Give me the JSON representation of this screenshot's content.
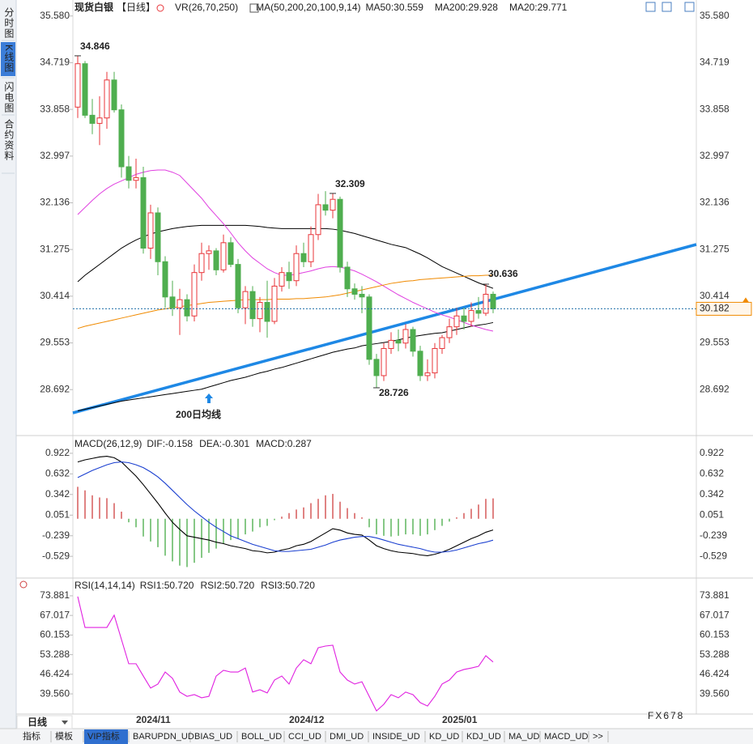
{
  "sidebar": [
    "分时图",
    "K线图",
    "闪电图",
    "合约资料"
  ],
  "toolbar": [
    "指标",
    "模板",
    "VIP指标",
    "BARUPDN_UD",
    "BIAS_UD",
    "BOLL_UD",
    "CCI_UD",
    "DMI_UD",
    "INSIDE_UD",
    "KD_UD",
    "KDJ_UD",
    "MA_UD",
    "MACD_UD",
    ">>"
  ],
  "period_button": "日线",
  "watermark": "FX678",
  "chart_data": [
    {
      "type": "candlestick",
      "title": "现货白银",
      "period": "【日线】",
      "indicator": "VR(26,70,250)",
      "ma_header": "MA(50,200,20,100,9,14)",
      "annotation": "200日均线",
      "categories": [
        null,
        null,
        null,
        null,
        null,
        null,
        null,
        null,
        "2024/11",
        null,
        null,
        null,
        null,
        null,
        null,
        null,
        null,
        null,
        null,
        null,
        null,
        null,
        null,
        null,
        null,
        null,
        null,
        null,
        null,
        "2024/12",
        null,
        null,
        null,
        null,
        null,
        null,
        null,
        null,
        null,
        null,
        null,
        null,
        null,
        null,
        null,
        null,
        null,
        null,
        null,
        null,
        "2025/01",
        null,
        null,
        null,
        null,
        null,
        null,
        null
      ],
      "open": [
        33.9,
        34.7,
        33.75,
        33.6,
        33.7,
        34.4,
        33.85,
        32.8,
        32.55,
        32.6,
        31.3,
        31.95,
        31.05,
        30.4,
        30.2,
        30.35,
        30.05,
        30.85,
        31.2,
        31.25,
        30.9,
        31.4,
        31.0,
        30.2,
        30.5,
        30.0,
        30.3,
        29.95,
        30.6,
        30.85,
        30.7,
        31.2,
        31.05,
        31.55,
        32.1,
        32.0,
        32.2,
        30.95,
        30.55,
        30.45,
        30.4,
        29.25,
        28.95,
        29.45,
        29.6,
        29.55,
        29.8,
        29.4,
        28.95,
        29.0,
        29.45,
        29.65,
        29.85,
        30.05,
        29.95,
        30.15,
        30.1,
        30.45
      ],
      "high": [
        34.846,
        34.75,
        34.05,
        34.1,
        34.55,
        34.55,
        33.95,
        33.0,
        32.95,
        32.8,
        32.1,
        32.05,
        31.15,
        30.7,
        30.55,
        30.45,
        31.0,
        31.4,
        31.35,
        31.3,
        31.55,
        31.5,
        31.1,
        30.6,
        30.6,
        30.4,
        30.7,
        30.75,
        30.95,
        31.05,
        31.35,
        31.4,
        31.7,
        32.3,
        32.35,
        32.309,
        32.25,
        31.05,
        30.65,
        30.6,
        30.45,
        29.35,
        29.55,
        29.75,
        29.8,
        29.9,
        29.85,
        29.5,
        29.25,
        29.55,
        29.7,
        30.0,
        30.2,
        30.2,
        30.3,
        30.4,
        30.636,
        30.5
      ],
      "low": [
        33.7,
        33.7,
        33.4,
        33.2,
        33.5,
        33.8,
        32.6,
        32.4,
        32.4,
        31.2,
        31.1,
        30.8,
        30.2,
        30.05,
        29.7,
        29.95,
        29.95,
        30.7,
        30.9,
        30.8,
        30.85,
        30.95,
        30.1,
        29.9,
        29.85,
        29.75,
        29.65,
        29.9,
        30.5,
        30.55,
        30.6,
        30.95,
        30.95,
        31.45,
        31.9,
        31.85,
        30.85,
        30.4,
        30.35,
        30.1,
        29.15,
        28.726,
        28.85,
        29.35,
        29.4,
        29.45,
        29.3,
        28.85,
        28.85,
        28.9,
        29.35,
        29.55,
        29.7,
        29.8,
        29.85,
        30.0,
        30.05,
        30.1
      ],
      "close": [
        34.7,
        33.75,
        33.6,
        33.7,
        34.4,
        33.85,
        32.8,
        32.55,
        32.6,
        31.3,
        31.95,
        31.05,
        30.4,
        30.2,
        30.35,
        30.05,
        30.85,
        31.2,
        31.25,
        30.9,
        31.4,
        31.0,
        30.2,
        30.5,
        30.0,
        30.3,
        29.95,
        30.6,
        30.85,
        30.7,
        31.2,
        31.05,
        31.55,
        32.1,
        32.0,
        32.2,
        30.95,
        30.55,
        30.45,
        30.4,
        29.25,
        28.95,
        29.45,
        29.6,
        29.55,
        29.8,
        29.4,
        28.95,
        29.0,
        29.45,
        29.65,
        29.85,
        30.05,
        29.95,
        30.15,
        30.1,
        30.45,
        30.182
      ],
      "up_color": "#e8363a",
      "down_color": "#4fae4f",
      "price_line_color": "#1f6fa8",
      "price_tag_color": "#f08a00",
      "series": [
        {
          "name": "MA50",
          "label": "MA50:30.559",
          "color": "#000000",
          "label_color": "#000000",
          "values": [
            30.68,
            30.8,
            30.9,
            31.0,
            31.1,
            31.2,
            31.3,
            31.38,
            31.45,
            31.51,
            31.56,
            31.6,
            31.63,
            31.66,
            31.68,
            31.7,
            31.71,
            31.72,
            31.72,
            31.72,
            31.72,
            31.72,
            31.72,
            31.72,
            31.71,
            31.7,
            31.68,
            31.67,
            31.66,
            31.66,
            31.66,
            31.66,
            31.66,
            31.66,
            31.66,
            31.65,
            31.63,
            31.6,
            31.57,
            31.53,
            31.49,
            31.45,
            31.41,
            31.37,
            31.34,
            31.31,
            31.25,
            31.19,
            31.12,
            31.04,
            30.96,
            30.9,
            30.84,
            30.78,
            30.72,
            30.66,
            30.61,
            30.559
          ]
        },
        {
          "name": "MA200",
          "label": "MA200:29.928",
          "color": "#000000",
          "label_color": "#1a56db",
          "values": [
            28.3,
            28.33,
            28.36,
            28.39,
            28.42,
            28.45,
            28.48,
            28.5,
            28.52,
            28.54,
            28.56,
            28.58,
            28.6,
            28.62,
            28.64,
            28.66,
            28.68,
            28.7,
            28.74,
            28.78,
            28.82,
            28.86,
            28.89,
            28.92,
            28.96,
            29.0,
            29.03,
            29.07,
            29.1,
            29.14,
            29.18,
            29.22,
            29.26,
            29.3,
            29.34,
            29.38,
            29.41,
            29.44,
            29.46,
            29.5,
            29.52,
            29.54,
            29.56,
            29.58,
            29.61,
            29.64,
            29.67,
            29.69,
            29.71,
            29.73,
            29.74,
            29.77,
            29.8,
            29.83,
            29.86,
            29.88,
            29.9,
            29.928
          ]
        },
        {
          "name": "MA20",
          "label": "MA20:29.771",
          "color": "#e040e0",
          "label_color": "#e020e0",
          "values": [
            31.92,
            32.05,
            32.18,
            32.3,
            32.4,
            32.48,
            32.54,
            32.6,
            32.66,
            32.7,
            32.73,
            32.74,
            32.74,
            32.7,
            32.64,
            32.5,
            32.36,
            32.22,
            32.05,
            31.9,
            31.75,
            31.58,
            31.4,
            31.25,
            31.12,
            31.02,
            30.92,
            30.85,
            30.8,
            30.8,
            30.82,
            30.85,
            30.88,
            30.92,
            30.95,
            30.96,
            30.95,
            30.92,
            30.88,
            30.82,
            30.75,
            30.68,
            30.6,
            30.52,
            30.44,
            30.37,
            30.3,
            30.24,
            30.18,
            30.12,
            30.07,
            30.03,
            29.98,
            29.93,
            29.88,
            29.84,
            29.8,
            29.771
          ]
        },
        {
          "color": "#f08a00",
          "values": [
            29.82,
            29.86,
            29.89,
            29.92,
            29.95,
            29.98,
            30.01,
            30.04,
            30.07,
            30.1,
            30.13,
            30.16,
            30.18,
            30.2,
            30.22,
            30.24,
            30.26,
            30.28,
            30.3,
            30.31,
            30.32,
            30.33,
            30.34,
            30.35,
            30.35,
            30.35,
            30.35,
            30.36,
            30.36,
            30.36,
            30.37,
            30.37,
            30.38,
            30.39,
            30.4,
            30.42,
            30.44,
            30.47,
            30.5,
            30.53,
            30.56,
            30.59,
            30.62,
            30.65,
            30.67,
            30.69,
            30.7,
            30.72,
            30.73,
            30.74,
            30.75,
            30.76,
            30.77,
            30.78,
            30.79,
            30.79,
            30.8,
            30.8
          ]
        }
      ],
      "ylim": [
        27.86,
        35.8
      ],
      "yticks": [
        {
          "value": 35.58,
          "label": "35.580"
        },
        34.719,
        33.858,
        32.997,
        32.136,
        31.275,
        30.414,
        29.553,
        28.692
      ]
    },
    {
      "type": "macd",
      "title": "MACD(26,12,9)",
      "series": [
        {
          "label": "DIF:-0.158",
          "color": "#000000",
          "label_color": "#000000",
          "values": [
            0.8,
            0.83,
            0.85,
            0.87,
            0.88,
            0.86,
            0.8,
            0.7,
            0.6,
            0.48,
            0.35,
            0.22,
            0.08,
            -0.05,
            -0.15,
            -0.24,
            -0.26,
            -0.28,
            -0.3,
            -0.33,
            -0.35,
            -0.38,
            -0.4,
            -0.42,
            -0.45,
            -0.46,
            -0.48,
            -0.47,
            -0.44,
            -0.42,
            -0.38,
            -0.36,
            -0.32,
            -0.26,
            -0.2,
            -0.14,
            -0.16,
            -0.2,
            -0.22,
            -0.23,
            -0.3,
            -0.38,
            -0.42,
            -0.45,
            -0.47,
            -0.48,
            -0.49,
            -0.51,
            -0.52,
            -0.5,
            -0.47,
            -0.43,
            -0.38,
            -0.33,
            -0.28,
            -0.24,
            -0.19,
            -0.158
          ]
        },
        {
          "label": "DEA:-0.301",
          "color": "#1a3fd0",
          "label_color": "#1a56db",
          "values": [
            0.58,
            0.63,
            0.68,
            0.72,
            0.76,
            0.79,
            0.8,
            0.79,
            0.76,
            0.72,
            0.66,
            0.59,
            0.5,
            0.4,
            0.3,
            0.2,
            0.11,
            0.03,
            -0.05,
            -0.12,
            -0.18,
            -0.24,
            -0.28,
            -0.32,
            -0.36,
            -0.39,
            -0.42,
            -0.45,
            -0.46,
            -0.46,
            -0.45,
            -0.44,
            -0.43,
            -0.4,
            -0.37,
            -0.33,
            -0.3,
            -0.28,
            -0.26,
            -0.25,
            -0.25,
            -0.27,
            -0.3,
            -0.33,
            -0.36,
            -0.38,
            -0.4,
            -0.42,
            -0.45,
            -0.47,
            -0.47,
            -0.46,
            -0.44,
            -0.41,
            -0.38,
            -0.35,
            -0.33,
            -0.301
          ]
        }
      ],
      "histogram": {
        "label": "MACD:0.287",
        "label_color": "#e020e0",
        "up_color": "#d04040",
        "down_color": "#44aa44",
        "values": [
          0.45,
          0.4,
          0.33,
          0.3,
          0.29,
          0.22,
          0.1,
          -0.05,
          -0.12,
          -0.25,
          -0.32,
          -0.4,
          -0.52,
          -0.6,
          -0.66,
          -0.68,
          -0.62,
          -0.55,
          -0.48,
          -0.42,
          -0.35,
          -0.3,
          -0.28,
          -0.22,
          -0.18,
          -0.12,
          -0.1,
          -0.02,
          0.03,
          0.08,
          0.13,
          0.16,
          0.22,
          0.28,
          0.33,
          0.35,
          0.24,
          0.15,
          0.08,
          0.02,
          -0.12,
          -0.22,
          -0.24,
          -0.25,
          -0.24,
          -0.22,
          -0.22,
          -0.24,
          -0.22,
          -0.16,
          -0.1,
          -0.04,
          0.02,
          0.08,
          0.14,
          0.2,
          0.28,
          0.287
        ]
      },
      "ylim": [
        -0.812,
        1.149
      ],
      "yticks": [
        0.922,
        0.632,
        0.342,
        0.051,
        -0.239,
        -0.529
      ]
    },
    {
      "type": "rsi",
      "title": "RSI(14,14,14)",
      "series": [
        {
          "label": "RSI1:50.720",
          "color": "#e020e0",
          "label_color": "#000000",
          "values": [
            73.6,
            62.8,
            62.8,
            62.8,
            62.8,
            67.1,
            58.6,
            50.1,
            50.1,
            45.8,
            41.6,
            43.0,
            47.2,
            45.0,
            40.2,
            38.7,
            39.3,
            38.2,
            38.7,
            45.8,
            47.8,
            47.2,
            47.2,
            48.6,
            40.2,
            41.0,
            39.9,
            44.4,
            45.8,
            43.0,
            48.6,
            51.5,
            50.1,
            55.7,
            56.3,
            56.6,
            47.2,
            44.4,
            43.0,
            43.8,
            38.7,
            33.6,
            35.9,
            39.3,
            38.2,
            40.2,
            39.3,
            36.5,
            35.3,
            38.7,
            43.0,
            44.4,
            47.2,
            48.1,
            48.6,
            49.2,
            52.9,
            50.72
          ]
        }
      ],
      "extra_labels": [
        {
          "label": "RSI2:50.720",
          "color": "#1a56db"
        },
        {
          "label": "RSI3:50.720",
          "color": "#e020e0"
        }
      ],
      "ylim": [
        32.5,
        79.53
      ],
      "yticks": [
        73.881,
        67.017,
        60.153,
        53.288,
        46.424,
        {
          "value": 39.56,
          "label": "39.560"
        }
      ]
    }
  ]
}
